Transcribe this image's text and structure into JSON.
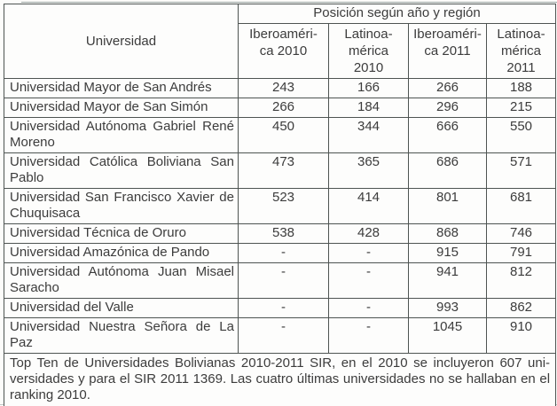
{
  "table": {
    "header": {
      "universidad": "Universidad",
      "group": "Posición según año y región",
      "columns": [
        {
          "label": "Iberoaméri-\nca 2010"
        },
        {
          "label": "Latinoa-\nmérica\n2010"
        },
        {
          "label": "Iberoaméri-\nca 2011"
        },
        {
          "label": "Latinoa-\nmérica\n2011"
        }
      ]
    },
    "rows": [
      {
        "name": "Universidad Mayor de San Andrés",
        "values": [
          "243",
          "166",
          "266",
          "188"
        ]
      },
      {
        "name": "Universidad Mayor de San Simón",
        "values": [
          "266",
          "184",
          "296",
          "215"
        ]
      },
      {
        "name": "Universidad Autónoma Gabriel René Moreno",
        "values": [
          "450",
          "344",
          "666",
          "550"
        ]
      },
      {
        "name": "Universidad Católica Boliviana San Pablo",
        "values": [
          "473",
          "365",
          "686",
          "571"
        ]
      },
      {
        "name": "Universidad San Francisco Xavier de Chuquisaca",
        "values": [
          "523",
          "414",
          "801",
          "681"
        ]
      },
      {
        "name": "Universidad Técnica de Oruro",
        "values": [
          "538",
          "428",
          "868",
          "746"
        ]
      },
      {
        "name": "Universidad Amazónica de Pando",
        "values": [
          "-",
          "-",
          "915",
          "791"
        ]
      },
      {
        "name": "Universidad Autónoma Juan Misael Saracho",
        "values": [
          "-",
          "-",
          "941",
          "812"
        ]
      },
      {
        "name": "Universidad del Valle",
        "values": [
          "-",
          "-",
          "993",
          "862"
        ]
      },
      {
        "name": "Universidad Nuestra Señora de La Paz",
        "values": [
          "-",
          "-",
          "1045",
          "910"
        ]
      }
    ],
    "footer": {
      "lines": [
        "Top Ten de Universidades Bolivianas 2010-2011 SIR, en el 2010 se incluyeron 607 uni-",
        "versidades y para el SIR 2011 1369. Las cuatro últimas universidades no se hallaban en el",
        "ranking 2010."
      ]
    }
  },
  "colors": {
    "text": "#3c3c3c",
    "border": "#4e5452",
    "background": "#fcfcfa"
  }
}
